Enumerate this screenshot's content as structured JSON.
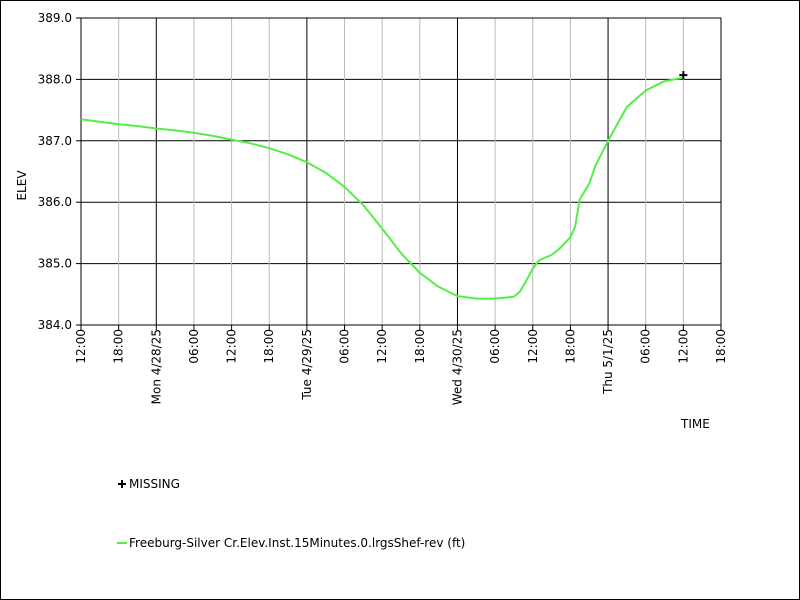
{
  "chart_data": {
    "type": "line",
    "title": "",
    "xlabel": "TIME",
    "ylabel": "ELEV",
    "ylim": [
      384.0,
      389.0
    ],
    "xlim": [
      "2025-04-27 12:00",
      "2025-05-01 18:00"
    ],
    "grid": true,
    "y_ticks": [
      "389.0",
      "388.0",
      "387.0",
      "386.0",
      "385.0",
      "384.0"
    ],
    "x_ticks": [
      {
        "time": "2025-04-27 12:00",
        "label": "12:00"
      },
      {
        "time": "2025-04-27 18:00",
        "label": "18:00"
      },
      {
        "time": "2025-04-28 00:00",
        "label": "Mon 4/28/25"
      },
      {
        "time": "2025-04-28 06:00",
        "label": "06:00"
      },
      {
        "time": "2025-04-28 12:00",
        "label": "12:00"
      },
      {
        "time": "2025-04-28 18:00",
        "label": "18:00"
      },
      {
        "time": "2025-04-29 00:00",
        "label": "Tue 4/29/25"
      },
      {
        "time": "2025-04-29 06:00",
        "label": "06:00"
      },
      {
        "time": "2025-04-29 12:00",
        "label": "12:00"
      },
      {
        "time": "2025-04-29 18:00",
        "label": "18:00"
      },
      {
        "time": "2025-04-30 00:00",
        "label": "Wed 4/30/25"
      },
      {
        "time": "2025-04-30 06:00",
        "label": "06:00"
      },
      {
        "time": "2025-04-30 12:00",
        "label": "12:00"
      },
      {
        "time": "2025-04-30 18:00",
        "label": "18:00"
      },
      {
        "time": "2025-05-01 00:00",
        "label": "Thu 5/1/25"
      },
      {
        "time": "2025-05-01 06:00",
        "label": "06:00"
      },
      {
        "time": "2025-05-01 12:00",
        "label": "12:00"
      },
      {
        "time": "2025-05-01 18:00",
        "label": "18:00"
      }
    ],
    "series": [
      {
        "name": "Freeburg-Silver Cr.Elev.Inst.15Minutes.0.lrgsShef-rev (ft)",
        "color": "#55ee44",
        "points": [
          [
            "2025-04-27 12:00",
            387.35
          ],
          [
            "2025-04-27 15:00",
            387.31
          ],
          [
            "2025-04-27 18:00",
            387.27
          ],
          [
            "2025-04-27 21:00",
            387.24
          ],
          [
            "2025-04-28 00:00",
            387.2
          ],
          [
            "2025-04-28 03:00",
            387.17
          ],
          [
            "2025-04-28 06:00",
            387.13
          ],
          [
            "2025-04-28 09:00",
            387.08
          ],
          [
            "2025-04-28 12:00",
            387.02
          ],
          [
            "2025-04-28 15:00",
            386.96
          ],
          [
            "2025-04-28 18:00",
            386.88
          ],
          [
            "2025-04-28 21:00",
            386.78
          ],
          [
            "2025-04-29 00:00",
            386.65
          ],
          [
            "2025-04-29 03:00",
            386.48
          ],
          [
            "2025-04-29 06:00",
            386.25
          ],
          [
            "2025-04-29 09:00",
            385.95
          ],
          [
            "2025-04-29 12:00",
            385.57
          ],
          [
            "2025-04-29 15:00",
            385.17
          ],
          [
            "2025-04-29 18:00",
            384.85
          ],
          [
            "2025-04-29 21:00",
            384.62
          ],
          [
            "2025-04-30 00:00",
            384.47
          ],
          [
            "2025-04-30 03:00",
            384.43
          ],
          [
            "2025-04-30 06:00",
            384.43
          ],
          [
            "2025-04-30 09:00",
            384.46
          ],
          [
            "2025-04-30 10:00",
            384.55
          ],
          [
            "2025-04-30 11:00",
            384.73
          ],
          [
            "2025-04-30 12:00",
            384.92
          ],
          [
            "2025-04-30 13:00",
            385.05
          ],
          [
            "2025-04-30 14:00",
            385.1
          ],
          [
            "2025-04-30 15:00",
            385.14
          ],
          [
            "2025-04-30 16:00",
            385.22
          ],
          [
            "2025-04-30 17:00",
            385.32
          ],
          [
            "2025-04-30 18:00",
            385.43
          ],
          [
            "2025-04-30 18:45",
            385.6
          ],
          [
            "2025-04-30 19:30",
            386.05
          ],
          [
            "2025-04-30 21:00",
            386.3
          ],
          [
            "2025-04-30 22:00",
            386.6
          ],
          [
            "2025-05-01 00:00",
            387.0
          ],
          [
            "2025-05-01 02:00",
            387.37
          ],
          [
            "2025-05-01 03:00",
            387.55
          ],
          [
            "2025-05-01 06:00",
            387.82
          ],
          [
            "2025-05-01 09:00",
            387.97
          ],
          [
            "2025-05-01 12:00",
            388.03
          ]
        ]
      }
    ],
    "missing": {
      "label": "MISSING",
      "points": [
        [
          "2025-05-01 12:00",
          388.07
        ]
      ]
    }
  }
}
